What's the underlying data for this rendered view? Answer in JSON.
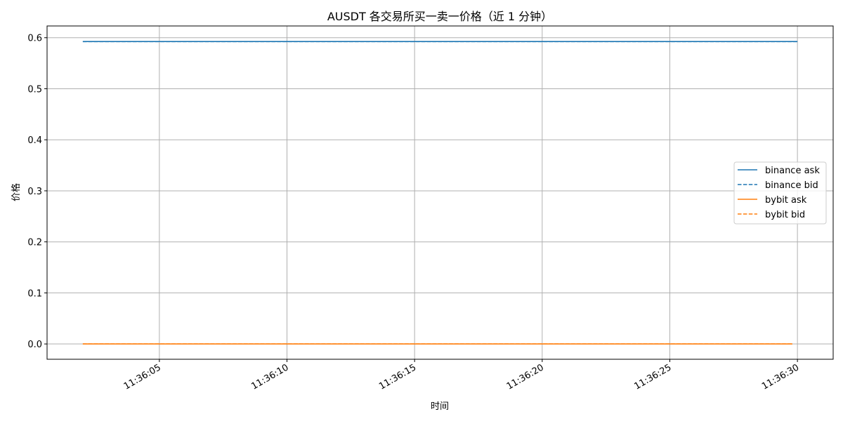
{
  "chart_data": {
    "type": "line",
    "title": "AUSDT 各交易所买一卖一价格（近 1 分钟）",
    "xlabel": "时间",
    "ylabel": "价格",
    "x_ticks": [
      "11:36:05",
      "11:36:10",
      "11:36:15",
      "11:36:20",
      "11:36:25",
      "11:36:30"
    ],
    "y_ticks": [
      "0.0",
      "0.1",
      "0.2",
      "0.3",
      "0.4",
      "0.5",
      "0.6"
    ],
    "xlim": [
      "11:36:00.6",
      "11:36:31.4"
    ],
    "ylim": [
      -0.03,
      0.623
    ],
    "grid": true,
    "legend_position": "center-right",
    "series": [
      {
        "name": "binance ask",
        "color": "#1f77b4",
        "dash": "solid",
        "x": [
          "11:36:02",
          "11:36:30"
        ],
        "y": [
          0.5925,
          0.5925
        ]
      },
      {
        "name": "binance bid",
        "color": "#1f77b4",
        "dash": "dashed",
        "x": [
          "11:36:02",
          "11:36:30"
        ],
        "y": [
          0.5923,
          0.5923
        ]
      },
      {
        "name": "bybit ask",
        "color": "#ff7f0e",
        "dash": "solid",
        "x": [
          "11:36:02",
          "11:36:29.8"
        ],
        "y": [
          0.0,
          0.0
        ]
      },
      {
        "name": "bybit bid",
        "color": "#ff7f0e",
        "dash": "dashed",
        "x": [
          "11:36:02",
          "11:36:29.8"
        ],
        "y": [
          0.0,
          0.0
        ]
      }
    ]
  }
}
